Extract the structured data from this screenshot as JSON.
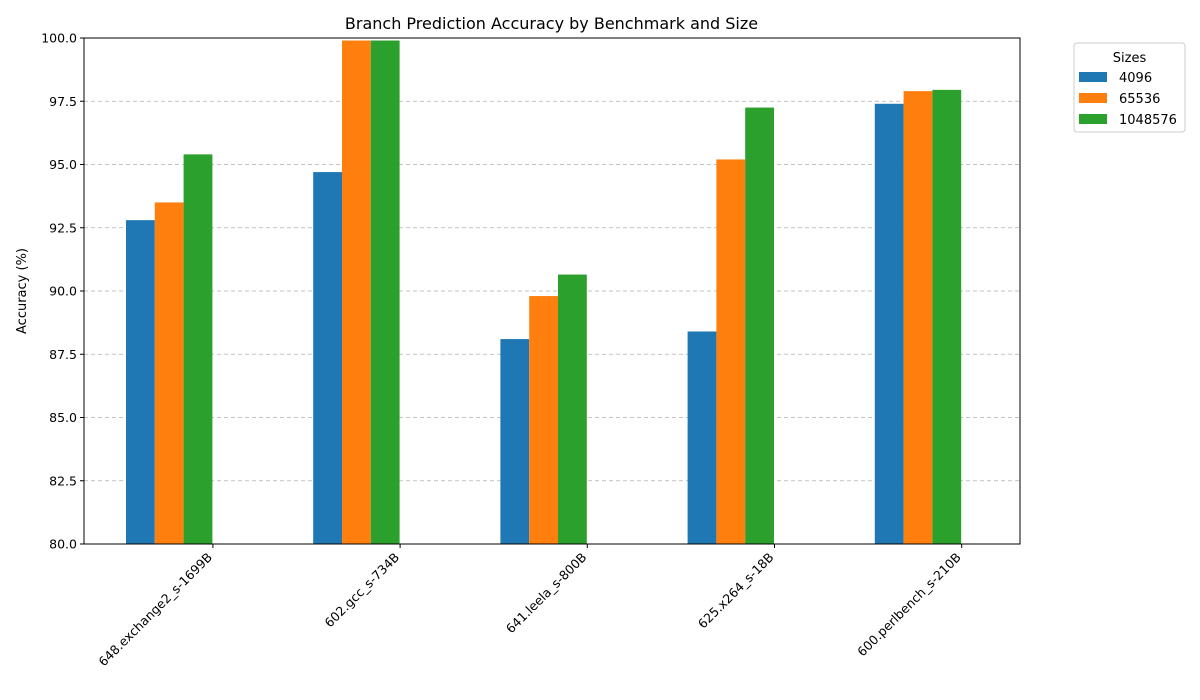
{
  "chart_data": {
    "type": "bar",
    "title": "Branch Prediction Accuracy by Benchmark and Size",
    "xlabel": "",
    "ylabel": "Accuracy (%)",
    "ylim": [
      80.0,
      100.0
    ],
    "yticks": [
      "80.0",
      "82.5",
      "85.0",
      "87.5",
      "90.0",
      "92.5",
      "95.0",
      "97.5",
      "100.0"
    ],
    "categories": [
      "648.exchange2_s-1699B",
      "602.gcc_s-734B",
      "641.leela_s-800B",
      "625.x264_s-18B",
      "600.perlbench_s-210B"
    ],
    "series": [
      {
        "name": "4096",
        "color": "#1f77b4",
        "values": [
          92.8,
          94.7,
          88.1,
          88.4,
          97.4
        ]
      },
      {
        "name": "65536",
        "color": "#ff7f0e",
        "values": [
          93.5,
          99.9,
          89.8,
          95.2,
          97.9
        ]
      },
      {
        "name": "1048576",
        "color": "#2ca02c",
        "values": [
          95.4,
          99.9,
          90.65,
          97.25,
          97.95
        ]
      }
    ],
    "legend": {
      "title": "Sizes",
      "position": "outside-top-right"
    },
    "grid": {
      "y": true,
      "x": false,
      "style": "dashed"
    }
  }
}
